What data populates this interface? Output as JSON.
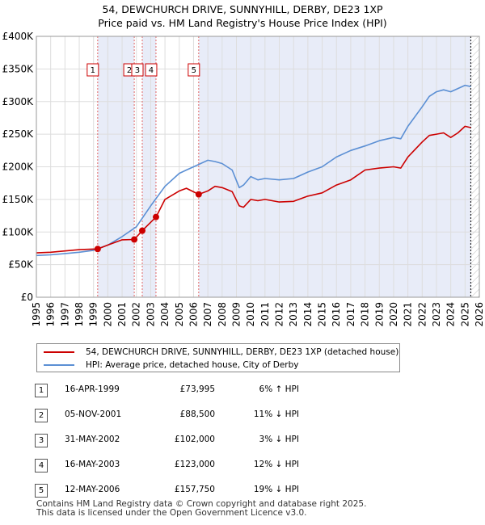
{
  "title": {
    "line1": "54, DEWCHURCH DRIVE, SUNNYHILL, DERBY, DE23 1XP",
    "line2": "Price paid vs. HM Land Registry's House Price Index (HPI)"
  },
  "chart_data": {
    "type": "line",
    "xlim": [
      1995,
      2026
    ],
    "ylim": [
      0,
      400000
    ],
    "x_ticks": [
      1995,
      1996,
      1997,
      1998,
      1999,
      2000,
      2001,
      2002,
      2003,
      2004,
      2005,
      2006,
      2007,
      2008,
      2009,
      2010,
      2011,
      2012,
      2013,
      2014,
      2015,
      2016,
      2017,
      2018,
      2019,
      2020,
      2021,
      2022,
      2023,
      2024,
      2025,
      2026
    ],
    "y_ticks": [
      {
        "value": 0,
        "label": "£0"
      },
      {
        "value": 50000,
        "label": "£50K"
      },
      {
        "value": 100000,
        "label": "£100K"
      },
      {
        "value": 150000,
        "label": "£150K"
      },
      {
        "value": 200000,
        "label": "£200K"
      },
      {
        "value": 250000,
        "label": "£250K"
      },
      {
        "value": 300000,
        "label": "£300K"
      },
      {
        "value": 350000,
        "label": "£350K"
      },
      {
        "value": 400000,
        "label": "£400K"
      }
    ],
    "series": [
      {
        "name": "54, DEWCHURCH DRIVE, SUNNYHILL, DERBY, DE23 1XP (detached house)",
        "color": "#cc0000",
        "x": [
          1995.0,
          1996.0,
          1997.0,
          1998.0,
          1999.29,
          2000.0,
          2001.0,
          2001.85,
          2002.41,
          2003.37,
          2004.0,
          2005.0,
          2005.5,
          2006.36,
          2007.0,
          2007.5,
          2008.0,
          2008.7,
          2009.2,
          2009.5,
          2010.0,
          2010.5,
          2011.0,
          2012.0,
          2013.0,
          2014.0,
          2015.0,
          2016.0,
          2017.0,
          2018.0,
          2019.0,
          2020.0,
          2020.5,
          2021.0,
          2022.0,
          2022.5,
          2023.0,
          2023.5,
          2024.0,
          2024.5,
          2025.0,
          2025.4
        ],
        "y": [
          68000,
          69000,
          71000,
          73000,
          73995,
          80000,
          88000,
          88500,
          102000,
          123000,
          150000,
          163000,
          167000,
          157750,
          163000,
          170000,
          168000,
          162000,
          140000,
          138000,
          150000,
          148000,
          150000,
          146000,
          147000,
          155000,
          160000,
          172000,
          180000,
          195000,
          198000,
          200000,
          198000,
          215000,
          238000,
          248000,
          250000,
          252000,
          245000,
          252000,
          262000,
          260000
        ]
      },
      {
        "name": "HPI: Average price, detached house, City of Derby",
        "color": "#5b8fd4",
        "x": [
          1995.0,
          1996.0,
          1997.0,
          1998.0,
          1999.0,
          2000.0,
          2001.0,
          2002.0,
          2003.0,
          2004.0,
          2005.0,
          2005.5,
          2006.0,
          2007.0,
          2007.5,
          2008.0,
          2008.7,
          2009.2,
          2009.5,
          2010.0,
          2010.5,
          2011.0,
          2012.0,
          2013.0,
          2014.0,
          2015.0,
          2016.0,
          2017.0,
          2018.0,
          2019.0,
          2020.0,
          2020.5,
          2021.0,
          2022.0,
          2022.5,
          2023.0,
          2023.5,
          2024.0,
          2024.5,
          2025.0,
          2025.4
        ],
        "y": [
          64000,
          65000,
          67000,
          69000,
          72000,
          80000,
          93000,
          108000,
          140000,
          170000,
          190000,
          195000,
          200000,
          210000,
          208000,
          205000,
          195000,
          168000,
          172000,
          185000,
          180000,
          182000,
          180000,
          182000,
          192000,
          200000,
          215000,
          225000,
          232000,
          240000,
          245000,
          243000,
          262000,
          292000,
          308000,
          315000,
          318000,
          315000,
          320000,
          325000,
          323000
        ]
      }
    ],
    "sales": [
      {
        "num": "1",
        "x": 1999.29,
        "y": 73995
      },
      {
        "num": "2",
        "x": 2001.85,
        "y": 88500
      },
      {
        "num": "3",
        "x": 2002.41,
        "y": 102000
      },
      {
        "num": "4",
        "x": 2003.37,
        "y": 123000
      },
      {
        "num": "5",
        "x": 2006.36,
        "y": 157750
      }
    ],
    "shaded_ranges": [
      [
        1999.29,
        2001.85
      ],
      [
        2002.41,
        2003.37
      ],
      [
        2006.36,
        2025.4
      ]
    ],
    "future_hatch_start": 2025.4
  },
  "legend": {
    "red_label": "54, DEWCHURCH DRIVE, SUNNYHILL, DERBY, DE23 1XP (detached house)",
    "blue_label": "HPI: Average price, detached house, City of Derby"
  },
  "sales_table": [
    {
      "num": "1",
      "date": "16-APR-1999",
      "price": "£73,995",
      "hpi": "6% ↑ HPI"
    },
    {
      "num": "2",
      "date": "05-NOV-2001",
      "price": "£88,500",
      "hpi": "11% ↓ HPI"
    },
    {
      "num": "3",
      "date": "31-MAY-2002",
      "price": "£102,000",
      "hpi": "3% ↓ HPI"
    },
    {
      "num": "4",
      "date": "16-MAY-2003",
      "price": "£123,000",
      "hpi": "12% ↓ HPI"
    },
    {
      "num": "5",
      "date": "12-MAY-2006",
      "price": "£157,750",
      "hpi": "19% ↓ HPI"
    }
  ],
  "footer": {
    "line1": "Contains HM Land Registry data © Crown copyright and database right 2025.",
    "line2": "This data is licensed under the Open Government Licence v3.0."
  }
}
